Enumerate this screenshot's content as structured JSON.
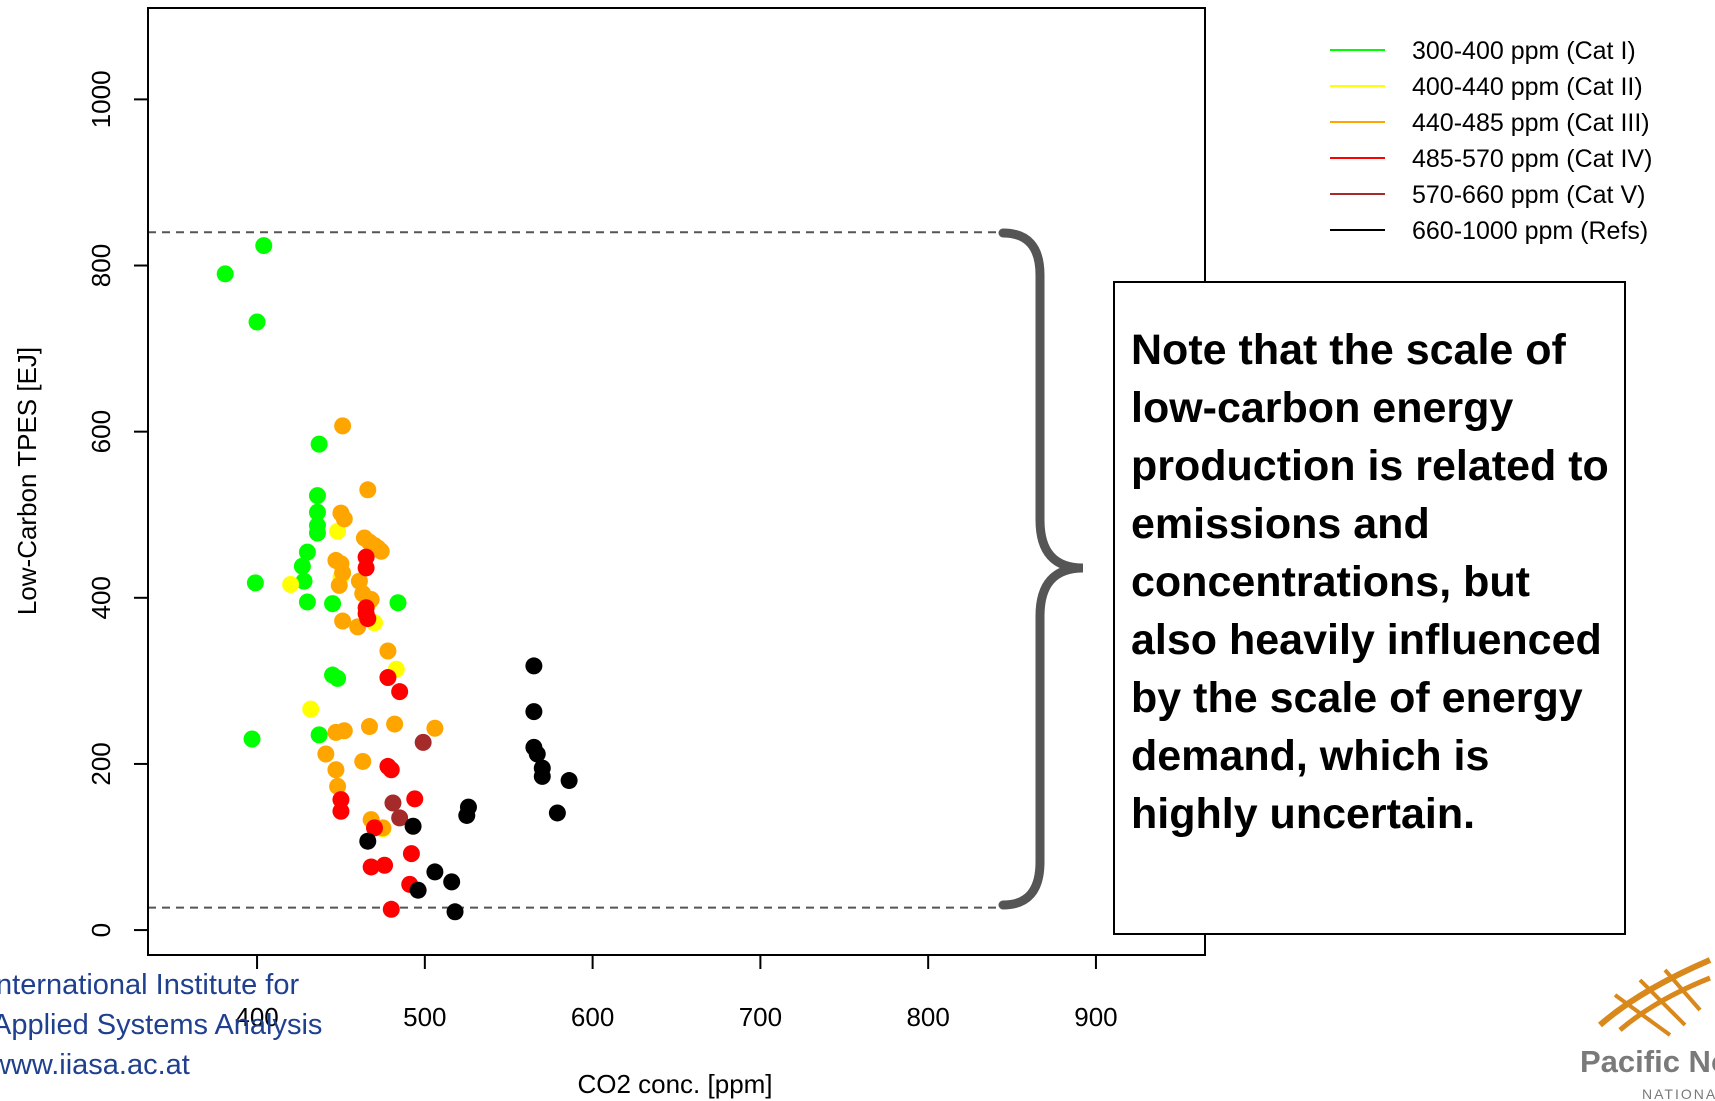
{
  "chart_data": {
    "type": "scatter",
    "xlabel": "CO2 conc. [ppm]",
    "ylabel": "Low-Carbon TPES [EJ]",
    "xlim": [
      335,
      965
    ],
    "ylim": [
      -30,
      1110
    ],
    "xticks": [
      400,
      500,
      600,
      700,
      800,
      900
    ],
    "yticks": [
      0,
      200,
      400,
      600,
      800,
      1000
    ],
    "grid": false,
    "legend_position": "top-right",
    "reference_lines": [
      840,
      27
    ],
    "series": [
      {
        "name": "300-400 ppm (Cat I)",
        "color": "#00ff00",
        "x": [
          381,
          400,
          404,
          437,
          436,
          436,
          436,
          436,
          430,
          427,
          428,
          430,
          399,
          445,
          484,
          445,
          448,
          437,
          397
        ],
        "y": [
          790,
          732,
          824,
          585,
          523,
          503,
          487,
          478,
          455,
          438,
          420,
          395,
          418,
          393,
          394,
          307,
          303,
          235,
          230
        ]
      },
      {
        "name": "400-440 ppm (Cat II)",
        "color": "#ffff00",
        "x": [
          420,
          448,
          450,
          432,
          467,
          470,
          483,
          475
        ],
        "y": [
          416,
          480,
          425,
          266,
          395,
          370,
          314,
          122
        ]
      },
      {
        "name": "440-485 ppm (Cat III)",
        "color": "#ffa500",
        "x": [
          451,
          466,
          450,
          452,
          447,
          450,
          451,
          449,
          464,
          467,
          470,
          472,
          474,
          461,
          463,
          468,
          460,
          451,
          478,
          447,
          452,
          467,
          482,
          506,
          441,
          447,
          448,
          463,
          468,
          475
        ],
        "y": [
          607,
          530,
          502,
          495,
          445,
          441,
          430,
          415,
          472,
          467,
          463,
          460,
          456,
          420,
          405,
          398,
          365,
          372,
          336,
          238,
          240,
          245,
          248,
          243,
          212,
          193,
          173,
          203,
          133,
          123
        ]
      },
      {
        "name": "485-570 ppm (Cat IV)",
        "color": "#ff0000",
        "x": [
          465,
          465,
          465,
          465,
          466,
          478,
          485,
          450,
          450,
          478,
          480,
          470,
          468,
          476,
          494,
          492,
          491,
          480
        ],
        "y": [
          449,
          436,
          388,
          381,
          375,
          304,
          287,
          157,
          143,
          197,
          193,
          123,
          76,
          78,
          158,
          92,
          55,
          25
        ]
      },
      {
        "name": "570-660 ppm (Cat V)",
        "color": "#a52a2a",
        "x": [
          499,
          481,
          485
        ],
        "y": [
          226,
          153,
          135
        ]
      },
      {
        "name": "660-1000 ppm (Refs)",
        "color": "#000000",
        "x": [
          565,
          565,
          565,
          567,
          570,
          570,
          586,
          579,
          526,
          525,
          493,
          496,
          506,
          516,
          518,
          466
        ],
        "y": [
          318,
          263,
          220,
          212,
          195,
          185,
          180,
          141,
          148,
          138,
          125,
          48,
          70,
          58,
          22,
          107
        ]
      }
    ]
  },
  "note": "Note that the scale of low-carbon energy production is related to emissions and concentrations, but also heavily influenced by the scale of energy demand, which is highly uncertain.",
  "logos": {
    "iiasa": [
      "International Institute for",
      "Applied Systems Analysis",
      "www.iiasa.ac.at"
    ],
    "pnnl": [
      "Pacific Northwest",
      "NATIONAL LABORATORY"
    ]
  }
}
